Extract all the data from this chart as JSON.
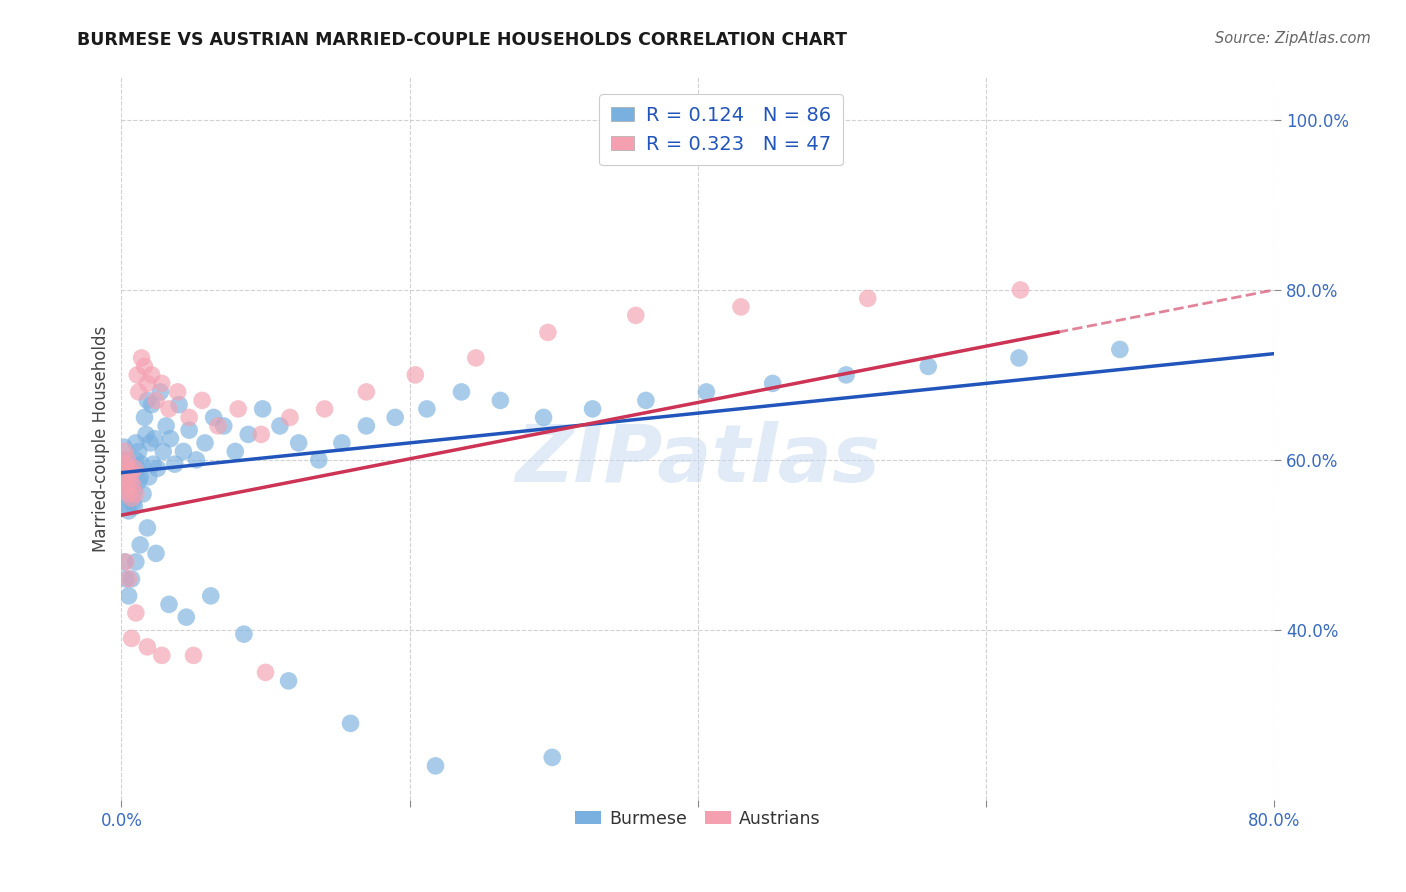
{
  "title": "BURMESE VS AUSTRIAN MARRIED-COUPLE HOUSEHOLDS CORRELATION CHART",
  "source": "Source: ZipAtlas.com",
  "ylabel": "Married-couple Households",
  "xlim": [
    0.0,
    0.8
  ],
  "ylim": [
    0.2,
    1.05
  ],
  "burmese_color": "#7ab0e0",
  "austrian_color": "#f4a0b0",
  "burmese_line_color": "#2255bb",
  "austrian_line_color": "#cc3355",
  "burmese_R": 0.124,
  "burmese_N": 86,
  "austrian_R": 0.323,
  "austrian_N": 47,
  "watermark": "ZIPatlas",
  "background_color": "#ffffff",
  "grid_color": "#cccccc",
  "burmese_x": [
    0.001,
    0.002,
    0.002,
    0.003,
    0.003,
    0.003,
    0.004,
    0.004,
    0.004,
    0.005,
    0.005,
    0.005,
    0.006,
    0.006,
    0.007,
    0.007,
    0.008,
    0.008,
    0.009,
    0.009,
    0.01,
    0.01,
    0.011,
    0.012,
    0.012,
    0.013,
    0.014,
    0.015,
    0.016,
    0.017,
    0.018,
    0.019,
    0.02,
    0.021,
    0.022,
    0.023,
    0.025,
    0.027,
    0.029,
    0.031,
    0.034,
    0.037,
    0.04,
    0.043,
    0.047,
    0.052,
    0.058,
    0.064,
    0.071,
    0.079,
    0.088,
    0.098,
    0.11,
    0.123,
    0.137,
    0.153,
    0.17,
    0.19,
    0.212,
    0.236,
    0.263,
    0.293,
    0.327,
    0.364,
    0.406,
    0.452,
    0.503,
    0.56,
    0.623,
    0.693,
    0.002,
    0.003,
    0.005,
    0.007,
    0.01,
    0.013,
    0.018,
    0.024,
    0.033,
    0.045,
    0.062,
    0.085,
    0.116,
    0.159,
    0.218,
    0.299
  ],
  "burmese_y": [
    0.57,
    0.59,
    0.615,
    0.555,
    0.58,
    0.6,
    0.545,
    0.57,
    0.595,
    0.54,
    0.565,
    0.59,
    0.56,
    0.58,
    0.555,
    0.575,
    0.55,
    0.57,
    0.545,
    0.565,
    0.6,
    0.62,
    0.59,
    0.575,
    0.61,
    0.58,
    0.595,
    0.56,
    0.65,
    0.63,
    0.67,
    0.58,
    0.62,
    0.665,
    0.595,
    0.625,
    0.59,
    0.68,
    0.61,
    0.64,
    0.625,
    0.595,
    0.665,
    0.61,
    0.635,
    0.6,
    0.62,
    0.65,
    0.64,
    0.61,
    0.63,
    0.66,
    0.64,
    0.62,
    0.6,
    0.62,
    0.64,
    0.65,
    0.66,
    0.68,
    0.67,
    0.65,
    0.66,
    0.67,
    0.68,
    0.69,
    0.7,
    0.71,
    0.72,
    0.73,
    0.48,
    0.46,
    0.44,
    0.46,
    0.48,
    0.5,
    0.52,
    0.49,
    0.43,
    0.415,
    0.44,
    0.395,
    0.34,
    0.29,
    0.24,
    0.25
  ],
  "austrian_x": [
    0.002,
    0.002,
    0.003,
    0.003,
    0.004,
    0.004,
    0.005,
    0.005,
    0.006,
    0.007,
    0.007,
    0.008,
    0.009,
    0.01,
    0.011,
    0.012,
    0.014,
    0.016,
    0.018,
    0.021,
    0.024,
    0.028,
    0.033,
    0.039,
    0.047,
    0.056,
    0.067,
    0.081,
    0.097,
    0.117,
    0.141,
    0.17,
    0.204,
    0.246,
    0.296,
    0.357,
    0.43,
    0.518,
    0.624,
    0.003,
    0.005,
    0.007,
    0.01,
    0.018,
    0.028,
    0.05,
    0.1
  ],
  "austrian_y": [
    0.58,
    0.61,
    0.565,
    0.595,
    0.57,
    0.6,
    0.56,
    0.59,
    0.575,
    0.555,
    0.585,
    0.57,
    0.59,
    0.56,
    0.7,
    0.68,
    0.72,
    0.71,
    0.69,
    0.7,
    0.67,
    0.69,
    0.66,
    0.68,
    0.65,
    0.67,
    0.64,
    0.66,
    0.63,
    0.65,
    0.66,
    0.68,
    0.7,
    0.72,
    0.75,
    0.77,
    0.78,
    0.79,
    0.8,
    0.48,
    0.46,
    0.39,
    0.42,
    0.38,
    0.37,
    0.37,
    0.35
  ]
}
